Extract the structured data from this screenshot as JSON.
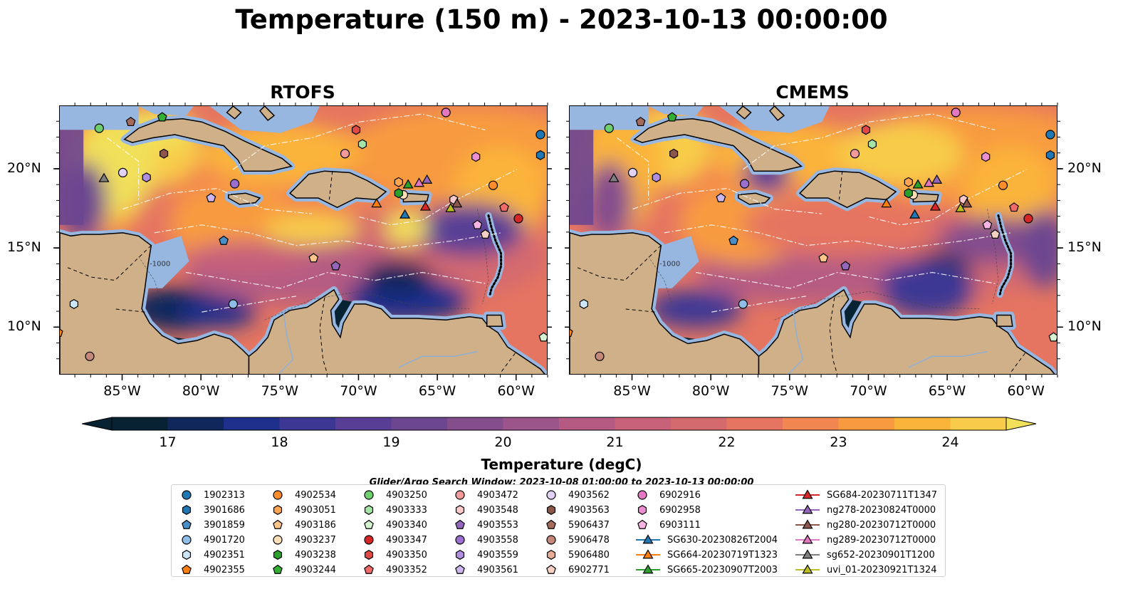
{
  "title": "Temperature (150 m) - 2023-10-13 00:00:00",
  "panels": [
    {
      "id": "rtofs",
      "title": "RTOFS"
    },
    {
      "id": "cmems",
      "title": "CMEMS"
    }
  ],
  "axes": {
    "lon_ticks": [
      "85°W",
      "80°W",
      "75°W",
      "70°W",
      "65°W",
      "60°W"
    ],
    "lat_ticks": [
      "20°N",
      "15°N",
      "10°N"
    ],
    "lon_range": [
      -89,
      -58
    ],
    "lat_range": [
      7,
      24
    ]
  },
  "colorbar": {
    "label": "Temperature (degC)",
    "ticks": [
      "17",
      "18",
      "19",
      "20",
      "21",
      "22",
      "23",
      "24"
    ],
    "range": [
      16.5,
      24.5
    ],
    "colors": [
      "#062233",
      "#10275c",
      "#1f2f8c",
      "#3d3794",
      "#583f95",
      "#6c4690",
      "#844e8d",
      "#9c558a",
      "#b55b83",
      "#c7627a",
      "#d56a6e",
      "#e57560",
      "#f28650",
      "#f89b40",
      "#fbb43a",
      "#f8cc4a",
      "#f1e05a"
    ]
  },
  "contour_label": "-1000",
  "search_window": "Glider/Argo Search Window: 2023-10-08 01:00:00 to 2023-10-13 00:00:00",
  "legend": [
    {
      "label": "1902313",
      "marker": "circle",
      "color": "#1f77b4"
    },
    {
      "label": "3901686",
      "marker": "hexagon",
      "color": "#1f77b4"
    },
    {
      "label": "3901859",
      "marker": "pentagon",
      "color": "#4a8ec8"
    },
    {
      "label": "4901720",
      "marker": "circle",
      "color": "#8fbde8"
    },
    {
      "label": "4902351",
      "marker": "hexagon",
      "color": "#cde6f7"
    },
    {
      "label": "4902355",
      "marker": "pentagon",
      "color": "#ff7f0e"
    },
    {
      "label": "4902534",
      "marker": "circle",
      "color": "#ff8c2a"
    },
    {
      "label": "4903051",
      "marker": "hexagon",
      "color": "#ffa552"
    },
    {
      "label": "4903186",
      "marker": "pentagon",
      "color": "#ffc48a"
    },
    {
      "label": "4903237",
      "marker": "circle",
      "color": "#ffdfb8"
    },
    {
      "label": "4903238",
      "marker": "hexagon",
      "color": "#2ca02c"
    },
    {
      "label": "4903244",
      "marker": "pentagon",
      "color": "#33b033"
    },
    {
      "label": "4903250",
      "marker": "circle",
      "color": "#6fcf6f"
    },
    {
      "label": "4903333",
      "marker": "hexagon",
      "color": "#a6e3a6"
    },
    {
      "label": "4903340",
      "marker": "pentagon",
      "color": "#d4f2cf"
    },
    {
      "label": "4903347",
      "marker": "circle",
      "color": "#d62728"
    },
    {
      "label": "4903350",
      "marker": "hexagon",
      "color": "#df4a47"
    },
    {
      "label": "4903352",
      "marker": "pentagon",
      "color": "#f06a6a"
    },
    {
      "label": "4903472",
      "marker": "circle",
      "color": "#f59a9a"
    },
    {
      "label": "4903548",
      "marker": "hexagon",
      "color": "#fbc9c9"
    },
    {
      "label": "4903553",
      "marker": "pentagon",
      "color": "#9467bd"
    },
    {
      "label": "4903558",
      "marker": "circle",
      "color": "#9b6fcf"
    },
    {
      "label": "4903559",
      "marker": "hexagon",
      "color": "#b08ee0"
    },
    {
      "label": "4903561",
      "marker": "pentagon",
      "color": "#cdb5ee"
    },
    {
      "label": "4903562",
      "marker": "circle",
      "color": "#e2d3f6"
    },
    {
      "label": "4903563",
      "marker": "hexagon",
      "color": "#8c564b"
    },
    {
      "label": "5906437",
      "marker": "pentagon",
      "color": "#a46b5c"
    },
    {
      "label": "5906478",
      "marker": "circle",
      "color": "#c4887a"
    },
    {
      "label": "5906480",
      "marker": "hexagon",
      "color": "#e8ab96"
    },
    {
      "label": "6902771",
      "marker": "pentagon",
      "color": "#f7d0c4"
    },
    {
      "label": "6902916",
      "marker": "circle",
      "color": "#e377c2"
    },
    {
      "label": "6902958",
      "marker": "hexagon",
      "color": "#ec8fd1"
    },
    {
      "label": "6903111",
      "marker": "pentagon",
      "color": "#f6b4e2"
    },
    {
      "label": "SG630-20230826T2004",
      "marker": "triangle-line",
      "color": "#1f77b4"
    },
    {
      "label": "SG664-20230719T1323",
      "marker": "triangle-line",
      "color": "#ff7f0e"
    },
    {
      "label": "SG665-20230907T2003",
      "marker": "triangle-line",
      "color": "#2ca02c"
    },
    {
      "label": "SG684-20230711T1347",
      "marker": "triangle-line",
      "color": "#d62728"
    },
    {
      "label": "ng278-20230824T0000",
      "marker": "triangle-line",
      "color": "#9467bd"
    },
    {
      "label": "ng280-20230712T0000",
      "marker": "triangle-line",
      "color": "#8c564b"
    },
    {
      "label": "ng289-20230712T0000",
      "marker": "triangle-line",
      "color": "#e377c2"
    },
    {
      "label": "sg652-20230901T1200",
      "marker": "triangle-line",
      "color": "#7f7f7f"
    },
    {
      "label": "uvi_01-20230921T1324",
      "marker": "triangle-line",
      "color": "#bcbd22"
    }
  ],
  "map_markers": [
    {
      "id": "1902313",
      "lon": -58.5,
      "lat": 22.2
    },
    {
      "id": "3901686",
      "lon": -58.5,
      "lat": 20.9
    },
    {
      "id": "3901859",
      "lon": -78.6,
      "lat": 15.5
    },
    {
      "id": "4901720",
      "lon": -78.0,
      "lat": 11.5
    },
    {
      "id": "4902351",
      "lon": -88.1,
      "lat": 11.5
    },
    {
      "id": "4902355",
      "lon": -89.1,
      "lat": 9.7
    },
    {
      "id": "4902534",
      "lon": -61.5,
      "lat": 19.0
    },
    {
      "id": "4903051",
      "lon": -67.5,
      "lat": 19.2
    },
    {
      "id": "4903186",
      "lon": -72.9,
      "lat": 14.4
    },
    {
      "id": "4903237",
      "lon": -67.2,
      "lat": 18.4
    },
    {
      "id": "4903238",
      "lon": -67.5,
      "lat": 18.5
    },
    {
      "id": "4903244",
      "lon": -82.5,
      "lat": 23.3
    },
    {
      "id": "4903250",
      "lon": -86.5,
      "lat": 22.6
    },
    {
      "id": "4903333",
      "lon": -69.8,
      "lat": 21.6
    },
    {
      "id": "4903340",
      "lon": -58.3,
      "lat": 9.4
    },
    {
      "id": "4903347",
      "lon": -59.9,
      "lat": 16.9
    },
    {
      "id": "4903350",
      "lon": -70.2,
      "lat": 22.5
    },
    {
      "id": "4903352",
      "lon": -60.8,
      "lat": 17.6
    },
    {
      "id": "4903472",
      "lon": -70.9,
      "lat": 21.0
    },
    {
      "id": "4903548",
      "lon": -64.0,
      "lat": 18.1
    },
    {
      "id": "4903553",
      "lon": -71.5,
      "lat": 13.9
    },
    {
      "id": "4903558",
      "lon": -77.9,
      "lat": 19.1
    },
    {
      "id": "4903559",
      "lon": -83.5,
      "lat": 19.5
    },
    {
      "id": "4903561",
      "lon": -79.4,
      "lat": 18.2
    },
    {
      "id": "4903562",
      "lon": -85.0,
      "lat": 19.8
    },
    {
      "id": "4903563",
      "lon": -82.4,
      "lat": 21.0
    },
    {
      "id": "5906437",
      "lon": -84.5,
      "lat": 23.0
    },
    {
      "id": "5906478",
      "lon": -87.1,
      "lat": 8.2
    },
    {
      "id": "5906480",
      "lon": -57.8,
      "lat": 11.7
    },
    {
      "id": "6902771",
      "lon": -62.0,
      "lat": 15.9
    },
    {
      "id": "6902916",
      "lon": -64.5,
      "lat": 23.6
    },
    {
      "id": "6902958",
      "lon": -62.6,
      "lat": 20.8
    },
    {
      "id": "6903111",
      "lon": -62.5,
      "lat": 16.5
    },
    {
      "id": "SG630-20230826T2004",
      "lon": -67.1,
      "lat": 17.1
    },
    {
      "id": "SG664-20230719T1323",
      "lon": -68.9,
      "lat": 17.8
    },
    {
      "id": "SG665-20230907T2003",
      "lon": -66.9,
      "lat": 19.0
    },
    {
      "id": "SG684-20230711T1347",
      "lon": -65.8,
      "lat": 17.6
    },
    {
      "id": "ng278-20230824T0000",
      "lon": -65.7,
      "lat": 19.3
    },
    {
      "id": "ng280-20230712T0000",
      "lon": -63.8,
      "lat": 17.8
    },
    {
      "id": "ng289-20230712T0000",
      "lon": -66.2,
      "lat": 19.1
    },
    {
      "id": "sg652-20230901T1200",
      "lon": -86.2,
      "lat": 19.4
    },
    {
      "id": "uvi_01-20230921T1324",
      "lon": -64.2,
      "lat": 17.5
    }
  ]
}
